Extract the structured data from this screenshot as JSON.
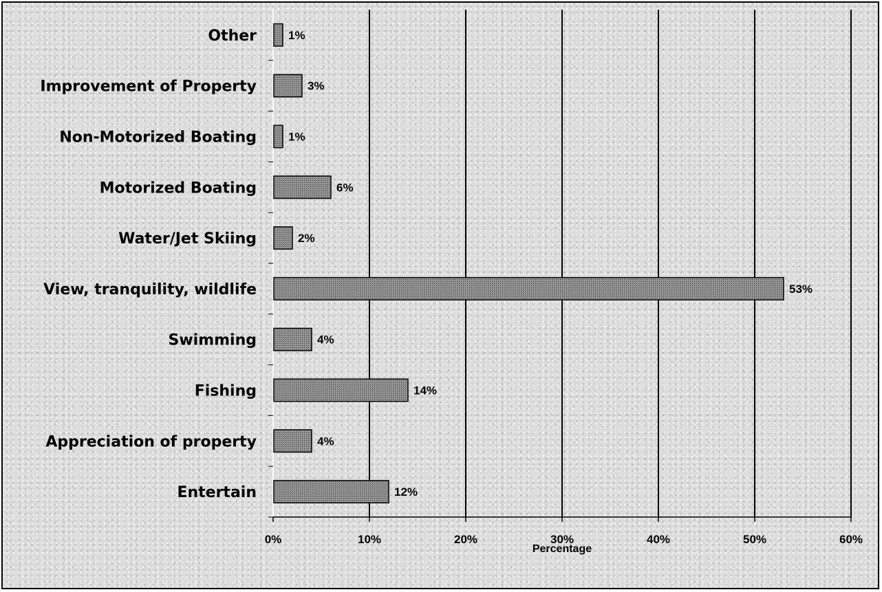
{
  "chart_data": {
    "type": "bar",
    "orientation": "horizontal",
    "categories": [
      "Entertain",
      "Appreciation of property",
      "Fishing",
      "Swimming",
      "View, tranquility, wildlife",
      "Water/Jet Skiing",
      "Motorized Boating",
      "Non-Motorized Boating",
      "Improvement of Property",
      "Other"
    ],
    "values": [
      12,
      4,
      14,
      4,
      53,
      2,
      6,
      1,
      3,
      1
    ],
    "data_labels": [
      "12%",
      "4%",
      "14%",
      "4%",
      "53%",
      "2%",
      "6%",
      "1%",
      "3%",
      "1%"
    ],
    "xlabel": "Percentage",
    "ylabel": "",
    "xlim": [
      0,
      60
    ],
    "xticks": [
      0,
      10,
      20,
      30,
      40,
      50,
      60
    ],
    "xtick_labels": [
      "0%",
      "10%",
      "20%",
      "30%",
      "40%",
      "50%",
      "60%"
    ],
    "grid": "vertical major gridlines",
    "legend": "none",
    "bar_color": "#808080",
    "bar_border_color": "#000000",
    "background_color": "#dcdcdc"
  }
}
